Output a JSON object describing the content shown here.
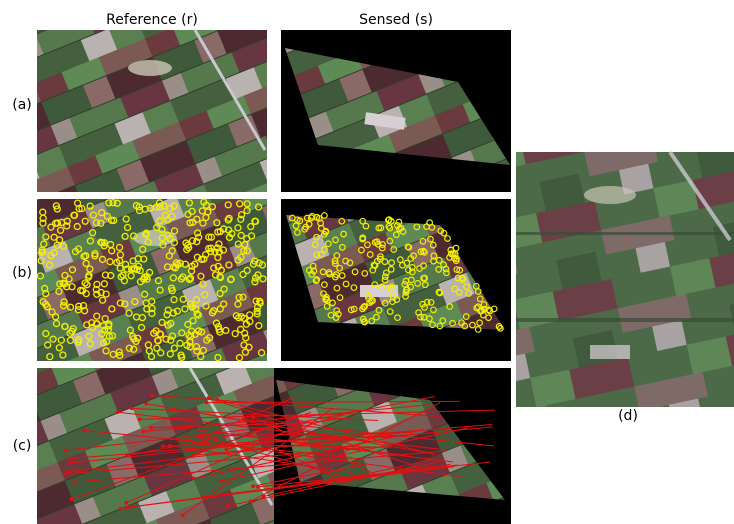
{
  "figure": {
    "column_headers": [
      "Reference (r)",
      "Sensed (s)"
    ],
    "row_labels": [
      "(a)",
      "(b)",
      "(c)"
    ],
    "panel_d_label": "(d)"
  }
}
